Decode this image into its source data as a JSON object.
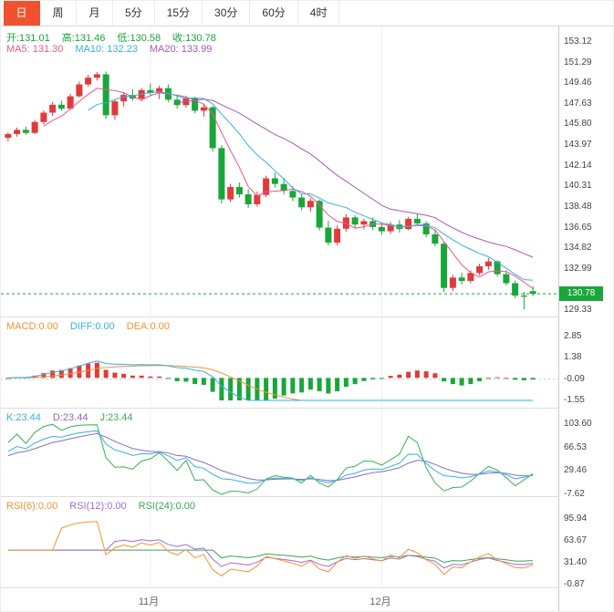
{
  "tabs": {
    "items": [
      {
        "name": "day",
        "label": "日",
        "active": true
      },
      {
        "name": "week",
        "label": "周",
        "active": false
      },
      {
        "name": "month",
        "label": "月",
        "active": false
      },
      {
        "name": "5min",
        "label": "5分",
        "active": false
      },
      {
        "name": "15min",
        "label": "15分",
        "active": false
      },
      {
        "name": "30min",
        "label": "30分",
        "active": false
      },
      {
        "name": "60min",
        "label": "60分",
        "active": false
      },
      {
        "name": "4hour",
        "label": "4时",
        "active": false
      }
    ]
  },
  "main": {
    "ohlc": {
      "open": "开:131.01",
      "high": "高:131.46",
      "low": "低:130.58",
      "close": "收:130.78"
    },
    "ma": {
      "ma5": "MA5: 131.30",
      "ma10": "MA10: 132.23",
      "ma20": "MA20: 133.99"
    },
    "y_labels": [
      "153.12",
      "151.29",
      "149.46",
      "147.63",
      "145.80",
      "143.97",
      "142.14",
      "140.31",
      "138.48",
      "136.65",
      "134.82",
      "132.99",
      "129.33"
    ],
    "price_badge": "130.78"
  },
  "macd": {
    "header": {
      "macd": "MACD:0.00",
      "diff": "DIFF:0.00",
      "dea": "DEA:0.00"
    },
    "y_labels": [
      "2.85",
      "1.38",
      "-0.09",
      "-1.55"
    ]
  },
  "kdj": {
    "header": {
      "k": "K:23.44",
      "d": "D:23.44",
      "j": "J:23.44"
    },
    "y_labels": [
      "103.60",
      "66.53",
      "29.46",
      "-7.62"
    ]
  },
  "rsi": {
    "header": {
      "rsi6": "RSI(6):0.00",
      "rsi12": "RSI(12):0.00",
      "rsi24": "RSI(24):0.00"
    },
    "y_labels": [
      "95.94",
      "63.67",
      "31.40",
      "-0.87"
    ]
  },
  "x_axis": {
    "labels": [
      {
        "text": "11月",
        "index": 16
      },
      {
        "text": "12月",
        "index": 42
      }
    ]
  },
  "chart_data": {
    "type": "candlestick",
    "x_labels": [
      "11月",
      "12月"
    ],
    "price_axis": {
      "min": 129.33,
      "max": 153.12,
      "tick_step": 1.83,
      "current_price": 130.78
    },
    "last_candle": {
      "open": 131.01,
      "high": 131.46,
      "low": 130.58,
      "close": 130.78
    },
    "ma": {
      "MA5": 131.3,
      "MA10": 132.23,
      "MA20": 133.99
    },
    "indicators": {
      "MACD": {
        "MACD": 0.0,
        "DIFF": 0.0,
        "DEA": 0.0,
        "axis": [
          2.85,
          1.38,
          -0.09,
          -1.55
        ]
      },
      "KDJ": {
        "K": 23.44,
        "D": 23.44,
        "J": 23.44,
        "axis": [
          103.6,
          66.53,
          29.46,
          -7.62
        ]
      },
      "RSI": {
        "RSI6": 0.0,
        "RSI12": 0.0,
        "RSI24": 0.0,
        "axis": [
          95.94,
          63.67,
          31.4,
          -0.87
        ]
      }
    },
    "candles": [
      [
        144.62,
        145.1,
        144.3,
        144.95
      ],
      [
        144.95,
        145.52,
        144.71,
        145.32
      ],
      [
        145.32,
        145.6,
        144.88,
        145.05
      ],
      [
        145.05,
        146.2,
        144.95,
        146.02
      ],
      [
        146.02,
        147.05,
        145.8,
        146.85
      ],
      [
        146.85,
        147.8,
        146.55,
        147.55
      ],
      [
        147.55,
        147.92,
        147.02,
        147.2
      ],
      [
        147.2,
        148.52,
        147.1,
        148.3
      ],
      [
        148.3,
        149.6,
        148.2,
        149.35
      ],
      [
        149.35,
        150.2,
        149.15,
        149.95
      ],
      [
        149.95,
        150.45,
        149.7,
        150.25
      ],
      [
        150.25,
        150.5,
        146.3,
        146.62
      ],
      [
        146.62,
        148.05,
        146.2,
        147.85
      ],
      [
        147.85,
        148.65,
        147.4,
        148.42
      ],
      [
        148.42,
        148.95,
        147.9,
        148.1
      ],
      [
        148.1,
        149.05,
        147.85,
        148.85
      ],
      [
        148.85,
        149.42,
        148.3,
        148.6
      ],
      [
        148.6,
        149.25,
        148.05,
        149.02
      ],
      [
        149.02,
        149.35,
        147.8,
        148.0
      ],
      [
        148.0,
        148.45,
        147.2,
        147.52
      ],
      [
        147.52,
        148.32,
        147.3,
        148.12
      ],
      [
        148.12,
        148.25,
        146.8,
        147.02
      ],
      [
        147.02,
        147.65,
        146.5,
        147.32
      ],
      [
        147.32,
        147.45,
        143.4,
        143.7
      ],
      [
        143.7,
        143.95,
        138.8,
        139.15
      ],
      [
        139.15,
        140.55,
        138.9,
        140.25
      ],
      [
        140.25,
        140.65,
        139.3,
        139.6
      ],
      [
        139.6,
        140.05,
        138.4,
        138.72
      ],
      [
        138.72,
        139.85,
        138.5,
        139.55
      ],
      [
        139.55,
        141.25,
        139.35,
        141.02
      ],
      [
        141.02,
        141.52,
        140.2,
        140.52
      ],
      [
        140.52,
        141.05,
        139.6,
        139.9
      ],
      [
        139.9,
        140.32,
        139.0,
        139.32
      ],
      [
        139.32,
        139.62,
        138.2,
        138.45
      ],
      [
        138.45,
        139.25,
        138.05,
        139.02
      ],
      [
        139.02,
        139.15,
        136.4,
        136.65
      ],
      [
        136.65,
        137.25,
        135.05,
        135.32
      ],
      [
        135.32,
        136.85,
        135.1,
        136.55
      ],
      [
        136.55,
        137.85,
        136.3,
        137.55
      ],
      [
        137.55,
        137.75,
        136.6,
        136.92
      ],
      [
        136.92,
        137.45,
        136.5,
        137.22
      ],
      [
        137.22,
        137.55,
        136.4,
        136.7
      ],
      [
        136.7,
        137.05,
        136.0,
        136.32
      ],
      [
        136.32,
        137.15,
        136.1,
        136.92
      ],
      [
        136.92,
        137.32,
        136.2,
        136.52
      ],
      [
        136.52,
        137.62,
        136.4,
        137.42
      ],
      [
        137.42,
        137.82,
        136.8,
        137.02
      ],
      [
        137.02,
        137.22,
        135.8,
        136.05
      ],
      [
        136.05,
        136.45,
        135.0,
        135.22
      ],
      [
        135.22,
        135.35,
        130.95,
        131.3
      ],
      [
        131.3,
        132.45,
        131.0,
        132.22
      ],
      [
        132.22,
        132.65,
        131.6,
        131.92
      ],
      [
        131.92,
        132.85,
        131.7,
        132.62
      ],
      [
        132.62,
        133.45,
        132.4,
        133.22
      ],
      [
        133.22,
        133.95,
        132.9,
        133.65
      ],
      [
        133.65,
        133.75,
        132.3,
        132.52
      ],
      [
        132.52,
        132.85,
        131.5,
        131.72
      ],
      [
        131.72,
        131.95,
        130.4,
        130.62
      ],
      [
        130.62,
        130.95,
        129.4,
        130.52
      ],
      [
        131.01,
        131.46,
        130.58,
        130.78
      ]
    ]
  },
  "colors": {
    "up": "#e23a3a",
    "down": "#1aa63a",
    "ma5": "#f0578c",
    "ma10": "#36b0e8",
    "ma20": "#a85ab4",
    "diff": "#36b0e8",
    "dea": "#f79231",
    "k": "#36b0e8",
    "d": "#8a6bbf",
    "j": "#3bb054",
    "rsi6": "#f79231",
    "rsi12": "#a06cd5",
    "rsi24": "#3aa657",
    "active_tab_bg": "#f2512e",
    "price_line": "#1aa63a",
    "grid": "#efefef"
  }
}
